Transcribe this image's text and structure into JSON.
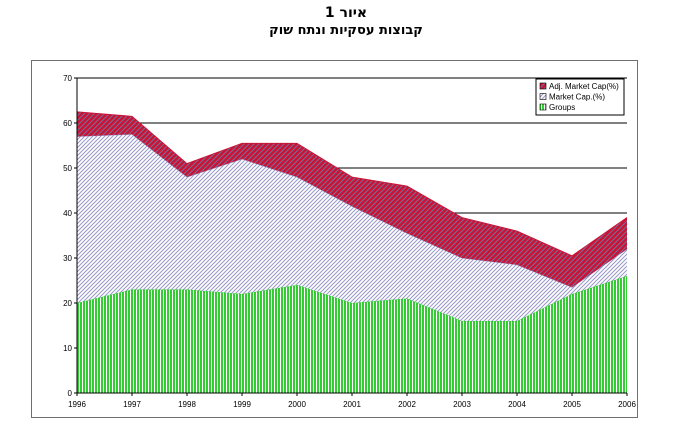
{
  "page": {
    "title": "איור 1",
    "subtitle": "קבוצות עסקיות ונתח שוק"
  },
  "chart_data": {
    "type": "area",
    "stacked": true,
    "title": "",
    "xlabel": "",
    "ylabel": "",
    "x": [
      "1996",
      "1997",
      "1998",
      "1999",
      "2000",
      "2001",
      "2002",
      "2003",
      "2004",
      "2005",
      "2006"
    ],
    "ylim": [
      0,
      70
    ],
    "yticks": [
      0,
      10,
      20,
      30,
      40,
      50,
      60,
      70
    ],
    "grid": "horizontal at 40, 50, 60",
    "legend_position": "top-right",
    "series": [
      {
        "name": "Groups",
        "values": [
          20,
          23,
          23,
          22,
          24,
          20,
          21,
          16,
          16,
          22,
          26
        ],
        "color": "#33cc33",
        "pattern": "vertical-lines"
      },
      {
        "name": "Market Cap.(%)",
        "values": [
          37,
          34.5,
          25,
          30,
          24,
          21.5,
          14.5,
          14,
          12.5,
          1.5,
          6
        ],
        "color": "#9999cc",
        "pattern": "diagonal-lines"
      },
      {
        "name": "Adj. Market Cap(%)",
        "values": [
          5.5,
          4,
          3,
          3.5,
          7.5,
          6.5,
          10.5,
          9,
          7.5,
          7,
          7
        ],
        "color": "#cc1133",
        "pattern": "diagonal-hatch"
      }
    ]
  }
}
